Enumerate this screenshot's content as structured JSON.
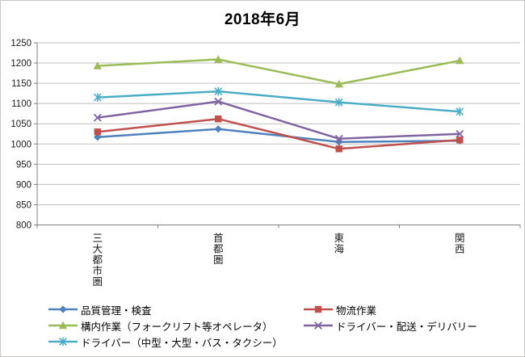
{
  "window": {
    "background": "#ffffff",
    "border_color": "#c9c7c5"
  },
  "chart_data": {
    "type": "line",
    "title": "2018年6月",
    "categories": [
      "三大都市圏",
      "首都圏",
      "東海",
      "関西"
    ],
    "x_label_orientation": "vertical",
    "xlabel": "",
    "ylabel": "",
    "ylim": [
      800,
      1250
    ],
    "y_tick_step": 50,
    "y_ticks": [
      1250,
      1200,
      1150,
      1100,
      1050,
      1000,
      950,
      900,
      850,
      800
    ],
    "grid": "horizontal",
    "grid_color": "#bfbfbf",
    "axis_color": "#808080",
    "legend_position": "bottom, 2 columns, row-major",
    "series": [
      {
        "name": "品質管理・検査",
        "color": "#4F81BD",
        "marker": "diamond",
        "values": [
          1017,
          1037,
          1005,
          1008
        ]
      },
      {
        "name": "物流作業",
        "color": "#C0504D",
        "marker": "square",
        "values": [
          1030,
          1062,
          988,
          1010
        ]
      },
      {
        "name": "構内作業（フォークリフト等オペレータ）",
        "color": "#9BBB59",
        "marker": "triangle",
        "values": [
          1193,
          1209,
          1148,
          1206
        ]
      },
      {
        "name": "ドライバー・配送・デリバリー",
        "color": "#8064A2",
        "marker": "x",
        "values": [
          1065,
          1105,
          1013,
          1025
        ]
      },
      {
        "name": "ドライバー（中型・大型・バス・タクシー）",
        "color": "#4BACC6",
        "marker": "asterisk",
        "values": [
          1115,
          1130,
          1103,
          1080
        ]
      }
    ]
  }
}
